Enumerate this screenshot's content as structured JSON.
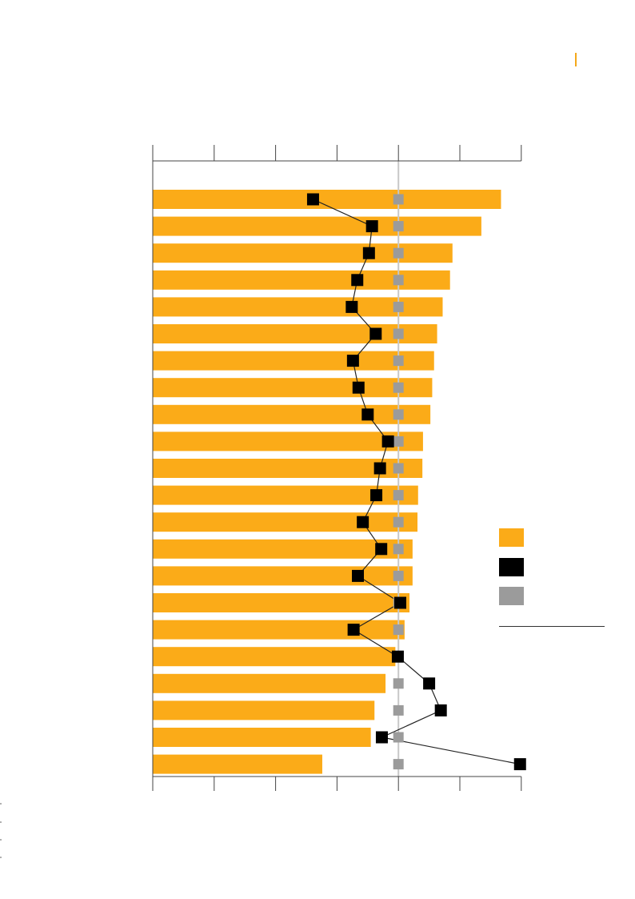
{
  "header": {
    "accent_color": "#F4A81A"
  },
  "colors": {
    "bar": "#FBAB18",
    "marker_black": "#000000",
    "marker_gray": "#9B9B9B",
    "axis": "#444444",
    "reference_line": "#C8C8C8",
    "connector": "#222222"
  },
  "chart_data": {
    "type": "bar",
    "orientation": "horizontal",
    "title": "",
    "xlabel": "",
    "ylabel": "",
    "xlim": [
      0,
      6
    ],
    "x_tick_count": 7,
    "x_tick_labels_visible": false,
    "grid": false,
    "reference_value": 4,
    "categories": [
      "",
      "",
      "",
      "",
      "",
      "",
      "",
      "",
      "",
      "",
      "",
      "",
      "",
      "",
      "",
      "",
      "",
      "",
      "",
      "",
      "",
      ""
    ],
    "series": [
      {
        "kind": "bar",
        "color": "#FBAB18",
        "values": [
          5.67,
          5.35,
          4.88,
          4.84,
          4.72,
          4.63,
          4.58,
          4.55,
          4.52,
          4.4,
          4.39,
          4.32,
          4.31,
          4.23,
          4.23,
          4.18,
          4.1,
          3.95,
          3.79,
          3.61,
          3.55,
          2.76
        ]
      },
      {
        "kind": "line-marker",
        "color": "#000000",
        "values": [
          2.61,
          3.57,
          3.52,
          3.33,
          3.24,
          3.63,
          3.26,
          3.35,
          3.5,
          3.83,
          3.7,
          3.64,
          3.42,
          3.72,
          3.34,
          4.03,
          3.27,
          3.99,
          4.5,
          4.69,
          3.73,
          5.98
        ]
      },
      {
        "kind": "marker",
        "color": "#9B9B9B",
        "values": [
          4,
          4,
          4,
          4,
          4,
          4,
          4,
          4,
          4,
          4,
          4,
          4,
          4,
          4,
          4,
          4,
          4,
          4,
          4,
          4,
          4,
          4
        ]
      }
    ],
    "legend": {
      "placement": "right",
      "entries": [
        {
          "color": "#FBAB18",
          "label": ""
        },
        {
          "color": "#000000",
          "label": ""
        },
        {
          "color": "#9B9B9B",
          "label": ""
        }
      ]
    }
  }
}
